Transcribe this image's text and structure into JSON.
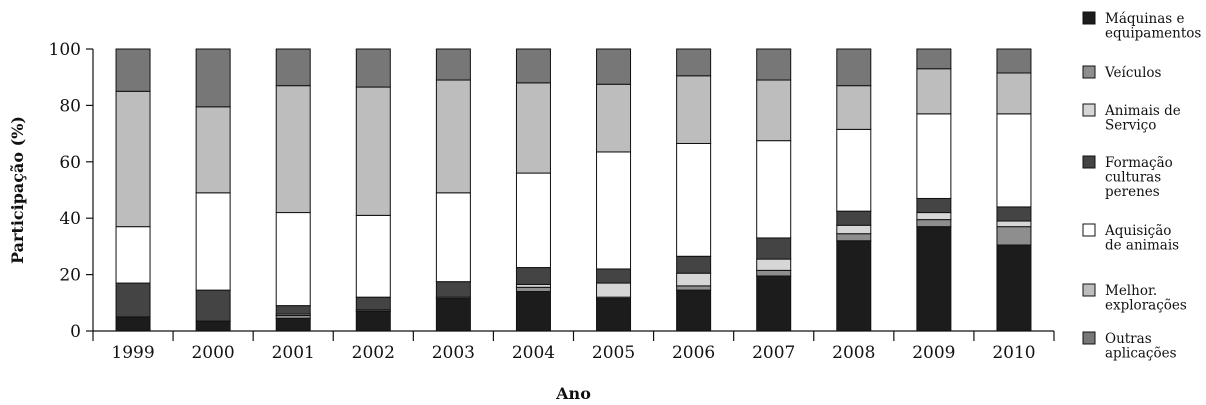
{
  "chart_data": {
    "type": "bar",
    "stacked": true,
    "title": "",
    "xlabel": "Ano",
    "ylabel": "Participação (%)",
    "ylim": [
      0,
      100
    ],
    "yticks": [
      0,
      20,
      40,
      60,
      80,
      100
    ],
    "grid": false,
    "legend_position": "right",
    "categories": [
      "1999",
      "2000",
      "2001",
      "2002",
      "2003",
      "2004",
      "2005",
      "2006",
      "2007",
      "2008",
      "2009",
      "2010"
    ],
    "series": [
      {
        "name": "Máquinas e equipamentos",
        "color": "#1c1c1c",
        "values": [
          5,
          3.5,
          4.5,
          7,
          11.5,
          14,
          11.5,
          14.5,
          19.5,
          32,
          37,
          30.5
        ]
      },
      {
        "name": "Veículos",
        "color": "#8e8e8e",
        "values": [
          0,
          0,
          1,
          0.5,
          0.5,
          1.5,
          0.5,
          1.5,
          2,
          2.5,
          2.5,
          6.5
        ]
      },
      {
        "name": "Animais de Serviço",
        "color": "#d6d6d6",
        "values": [
          0,
          0,
          0.5,
          0,
          0,
          1,
          5,
          4.5,
          4,
          3,
          2.5,
          2
        ]
      },
      {
        "name": "Formação culturas perenes",
        "color": "#444444",
        "values": [
          12,
          11,
          3,
          4.5,
          5.5,
          6,
          5,
          6,
          7.5,
          5,
          5,
          5
        ]
      },
      {
        "name": "Aquisição de animais",
        "color": "#ffffff",
        "values": [
          20,
          34.5,
          33,
          29,
          31.5,
          33.5,
          41.5,
          40,
          34.5,
          29,
          30,
          33
        ]
      },
      {
        "name": "Melhor. explorações",
        "color": "#bdbdbd",
        "values": [
          48,
          30.5,
          45,
          45.5,
          40,
          32,
          24,
          24,
          21.5,
          15.5,
          16,
          14.5
        ]
      },
      {
        "name": "Outras aplicações",
        "color": "#777777",
        "values": [
          15,
          20.5,
          13,
          13.5,
          11,
          12,
          12.5,
          9.5,
          11,
          13,
          7,
          8.5
        ]
      }
    ],
    "legend": [
      {
        "lines": [
          "Máquinas e",
          "equipamentos"
        ]
      },
      {
        "lines": [
          "Veículos"
        ]
      },
      {
        "lines": [
          "Animais de",
          "Serviço"
        ]
      },
      {
        "lines": [
          "Formação",
          "culturas",
          "perenes"
        ]
      },
      {
        "lines": [
          "Aquisição",
          "de animais"
        ]
      },
      {
        "lines": [
          "Melhor.",
          "explorações"
        ]
      },
      {
        "lines": [
          "Outras",
          "aplicações"
        ]
      }
    ]
  }
}
